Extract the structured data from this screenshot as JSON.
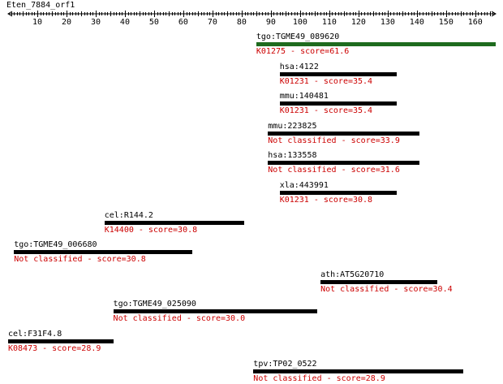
{
  "query": {
    "name": "Eten_7884_orf1",
    "length": 167,
    "ticks": [
      10,
      20,
      30,
      40,
      50,
      60,
      70,
      80,
      90,
      100,
      110,
      120,
      130,
      140,
      150,
      160
    ]
  },
  "colors": {
    "top_hit_bar": "#1e6b1e",
    "hit_bar": "#000000",
    "annotation_text": "#cc0000",
    "name_text": "#000000"
  },
  "hits": [
    {
      "name": "tgo:TGME49_089620",
      "annotation": "K01275 - score=61.6",
      "start": 85,
      "end": 167,
      "best": true
    },
    {
      "name": "hsa:4122",
      "annotation": "K01231 - score=35.4",
      "start": 93,
      "end": 133,
      "best": false
    },
    {
      "name": "mmu:140481",
      "annotation": "K01231 - score=35.4",
      "start": 93,
      "end": 133,
      "best": false
    },
    {
      "name": "mmu:223825",
      "annotation": "Not classified - score=33.9",
      "start": 89,
      "end": 141,
      "best": false
    },
    {
      "name": "hsa:133558",
      "annotation": "Not classified - score=31.6",
      "start": 89,
      "end": 141,
      "best": false
    },
    {
      "name": "xla:443991",
      "annotation": "K01231 - score=30.8",
      "start": 93,
      "end": 133,
      "best": false
    },
    {
      "name": "cel:R144.2",
      "annotation": "K14400 - score=30.8",
      "start": 33,
      "end": 81,
      "best": false
    },
    {
      "name": "tgo:TGME49_006680",
      "annotation": "Not classified - score=30.8",
      "start": 2,
      "end": 63,
      "best": false
    },
    {
      "name": "ath:AT5G20710",
      "annotation": "Not classified - score=30.4",
      "start": 107,
      "end": 147,
      "best": false
    },
    {
      "name": "tgo:TGME49_025090",
      "annotation": "Not classified - score=30.0",
      "start": 36,
      "end": 106,
      "best": false
    },
    {
      "name": "cel:F31F4.8",
      "annotation": "K08473 - score=28.9",
      "start": 0,
      "end": 36,
      "best": false
    },
    {
      "name": "tpv:TP02_0522",
      "annotation": "Not classified - score=28.9",
      "start": 84,
      "end": 156,
      "best": false
    }
  ]
}
